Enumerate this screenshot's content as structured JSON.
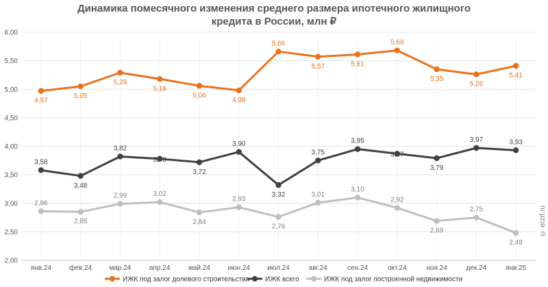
{
  "chart_data": {
    "type": "line",
    "title": "Динамика помесячного изменения среднего размера ипотечного жилищного кредита в России, млн ₽",
    "categories": [
      "янв.24",
      "фев.24",
      "мар.24",
      "апр.24",
      "май.24",
      "июн.24",
      "июл.24",
      "авг.24",
      "сен.24",
      "окт.24",
      "ноя.24",
      "дек.24",
      "янв.25"
    ],
    "ylim": [
      2.0,
      6.0
    ],
    "yticks": [
      "2,00",
      "2,50",
      "3,00",
      "3,50",
      "4,00",
      "4,50",
      "5,00",
      "5,50",
      "6,00"
    ],
    "grid": true,
    "legend_position": "bottom",
    "series": [
      {
        "name": "ИЖК под залог долевого строительства",
        "color": "#E8731E",
        "values": [
          4.97,
          5.05,
          5.29,
          5.18,
          5.06,
          4.98,
          5.66,
          5.57,
          5.61,
          5.68,
          5.35,
          5.26,
          5.41
        ],
        "labels": [
          "4,97",
          "5,05",
          "5,29",
          "5,18",
          "5,06",
          "4,98",
          "5,66",
          "5,57",
          "5,61",
          "5,68",
          "5,35",
          "5,26",
          "5,41"
        ]
      },
      {
        "name": "ИЖК всего",
        "color": "#404040",
        "values": [
          3.58,
          3.48,
          3.82,
          3.78,
          3.72,
          3.9,
          3.32,
          3.75,
          3.95,
          3.87,
          3.79,
          3.97,
          3.93
        ],
        "labels": [
          "3,58",
          "3,48",
          "3,82",
          "3,78",
          "3,72",
          "3,90",
          "3,32",
          "3,75",
          "3,95",
          "3,87",
          "3,79",
          "3,97",
          "3,93"
        ]
      },
      {
        "name": "ИЖК под залог построенной недвижимости",
        "color": "#BFBFBF",
        "values": [
          2.86,
          2.85,
          2.99,
          3.02,
          2.84,
          2.93,
          2.76,
          3.01,
          3.1,
          2.92,
          2.69,
          2.75,
          2.48
        ],
        "labels": [
          "2,86",
          "2,85",
          "2,99",
          "3,02",
          "2,84",
          "2,93",
          "2,76",
          "3,01",
          "3,10",
          "2,92",
          "2,69",
          "2,75",
          "2,48"
        ]
      }
    ]
  },
  "watermark": "© erzrf.ru"
}
